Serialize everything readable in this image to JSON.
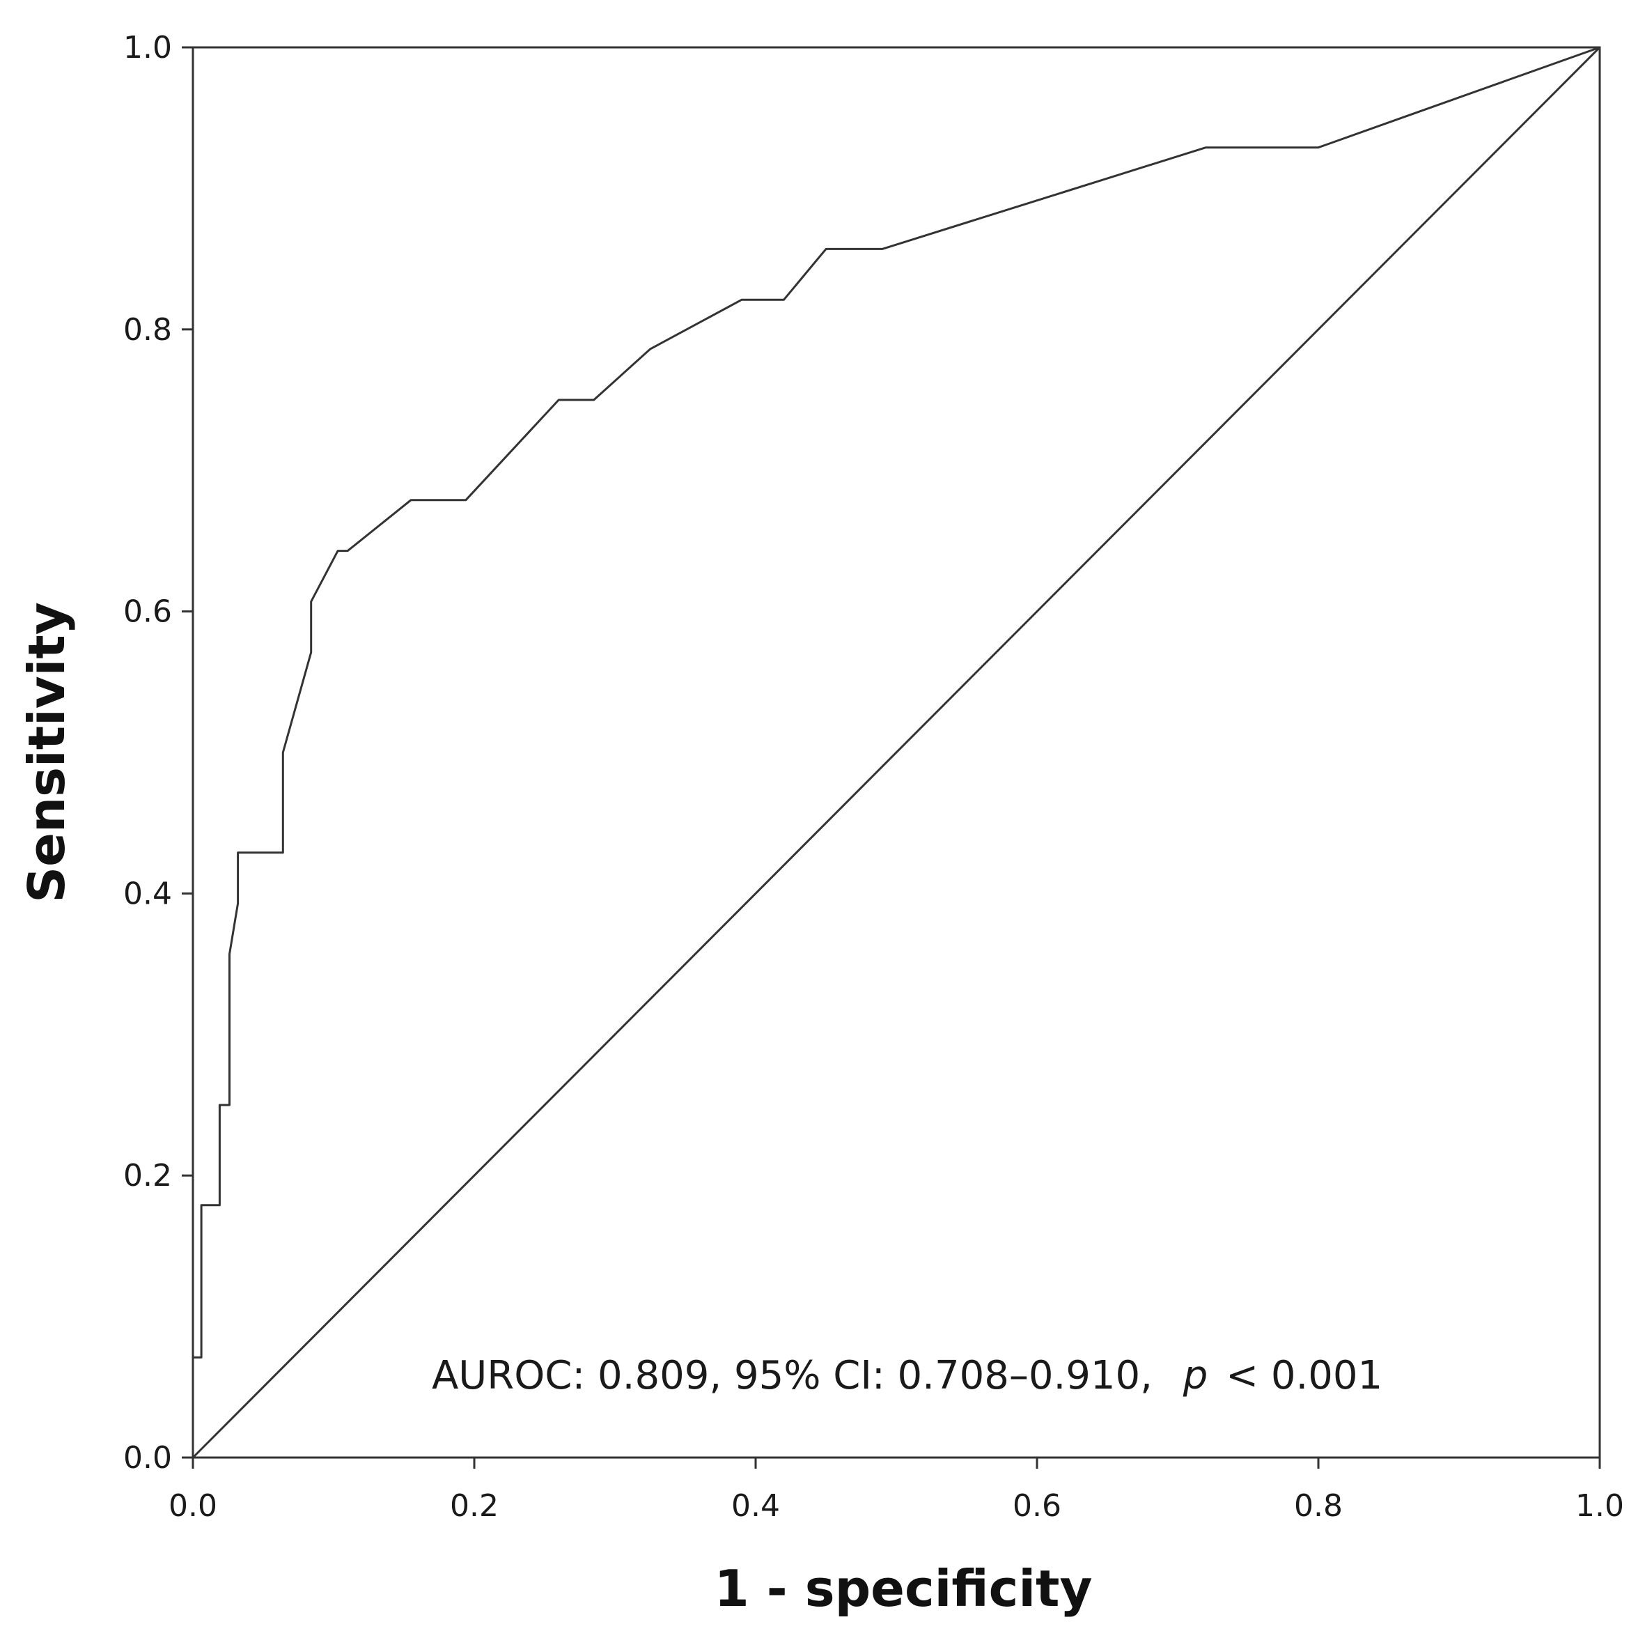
{
  "chart_data": {
    "type": "line",
    "xlabel": "1 - specificity",
    "ylabel": "Sensitivity",
    "xlim": [
      0.0,
      1.0
    ],
    "ylim": [
      0.0,
      1.0
    ],
    "x_ticks": [
      "0.0",
      "0.2",
      "0.4",
      "0.6",
      "0.8",
      "1.0"
    ],
    "y_ticks": [
      "0.0",
      "0.2",
      "0.4",
      "0.6",
      "0.8",
      "1.0"
    ],
    "grid": false,
    "annotation": {
      "prefix": "AUROC: 0.809, 95% CI: 0.708–0.910,",
      "p_symbol": "p",
      "suffix": "< 0.001"
    },
    "series": [
      {
        "points": [
          [
            0.0,
            0.0
          ],
          [
            0.0,
            0.071
          ],
          [
            0.006,
            0.071
          ],
          [
            0.006,
            0.179
          ],
          [
            0.019,
            0.179
          ],
          [
            0.019,
            0.25
          ],
          [
            0.026,
            0.25
          ],
          [
            0.026,
            0.357
          ],
          [
            0.032,
            0.393
          ],
          [
            0.032,
            0.429
          ],
          [
            0.064,
            0.429
          ],
          [
            0.064,
            0.5
          ],
          [
            0.084,
            0.571
          ],
          [
            0.084,
            0.607
          ],
          [
            0.103,
            0.643
          ],
          [
            0.11,
            0.643
          ],
          [
            0.155,
            0.679
          ],
          [
            0.194,
            0.679
          ],
          [
            0.26,
            0.75
          ],
          [
            0.285,
            0.75
          ],
          [
            0.325,
            0.786
          ],
          [
            0.39,
            0.821
          ],
          [
            0.42,
            0.821
          ],
          [
            0.45,
            0.857
          ],
          [
            0.49,
            0.857
          ],
          [
            0.72,
            0.929
          ],
          [
            0.8,
            0.929
          ],
          [
            1.0,
            1.0
          ]
        ]
      },
      {
        "points": [
          [
            0.0,
            0.0
          ],
          [
            1.0,
            1.0
          ]
        ]
      }
    ]
  }
}
